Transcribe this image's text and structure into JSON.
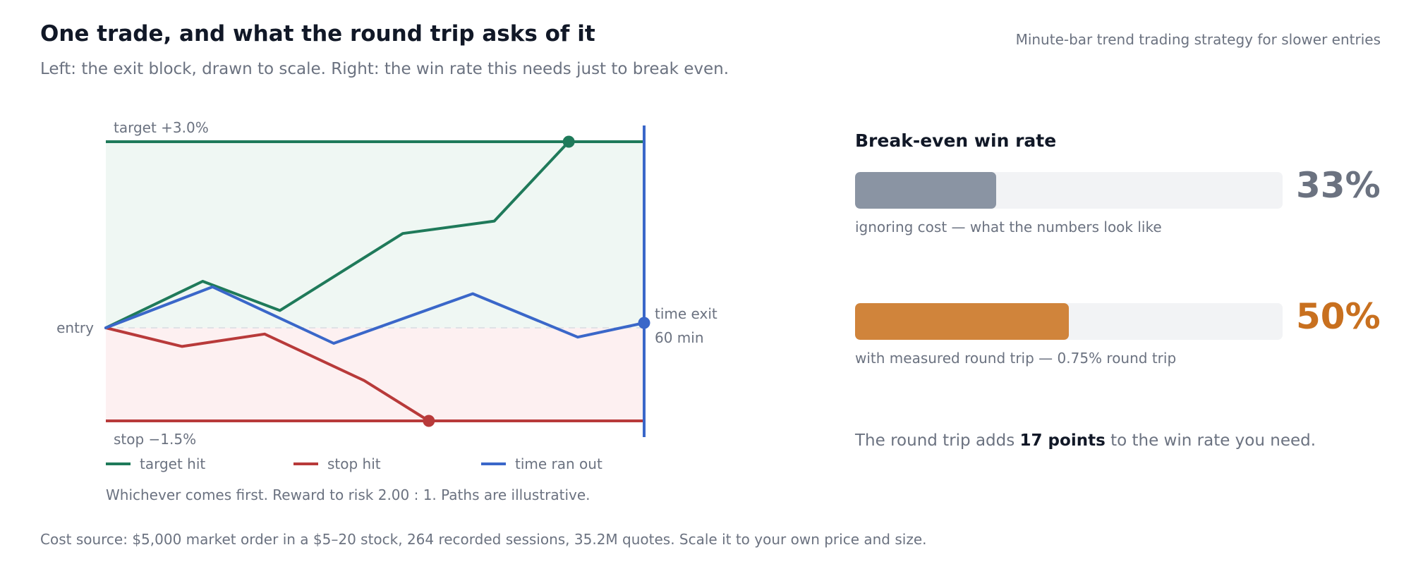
{
  "header": {
    "title": "One trade, and what the round trip asks of it",
    "subtitle": "Left: the exit block, drawn to scale. Right: the win rate this needs just to break even.",
    "caption": "Minute-bar trend trading strategy for slower entries"
  },
  "colors": {
    "target": "#1f7a5a",
    "stop": "#b83a3a",
    "time": "#3a67c9",
    "target_zone": "#eff7f3",
    "stop_zone": "#fdf0f1",
    "bar_gray": "#8a94a3",
    "bar_orange": "#d0843b",
    "value_gray": "#6b7280",
    "value_orange": "#c8701f"
  },
  "chart_data": [
    {
      "type": "line",
      "x_unit": "minutes",
      "y_unit": "% from entry",
      "xlim": [
        0,
        60
      ],
      "ylim": [
        -1.5,
        3.0
      ],
      "labels": {
        "target": "target +3.0%",
        "stop": "stop −1.5%",
        "entry": "entry",
        "time_exit": "time exit",
        "time_exit_minutes": "60 min"
      },
      "series": [
        {
          "name": "target hit",
          "color_key": "target",
          "points": [
            [
              0,
              0
            ],
            [
              10.8,
              0.75
            ],
            [
              19.4,
              0.28
            ],
            [
              33.1,
              1.52
            ],
            [
              43.3,
              1.72
            ],
            [
              51.6,
              3.0
            ]
          ],
          "end_marker": [
            51.6,
            3.0
          ]
        },
        {
          "name": "stop hit",
          "color_key": "stop",
          "points": [
            [
              0,
              0
            ],
            [
              8.5,
              -0.3
            ],
            [
              17.7,
              -0.1
            ],
            [
              28.8,
              -0.85
            ],
            [
              36.0,
              -1.5
            ]
          ],
          "end_marker": [
            36.0,
            -1.5
          ]
        },
        {
          "name": "time ran out",
          "color_key": "time",
          "points": [
            [
              0,
              0
            ],
            [
              11.9,
              0.66
            ],
            [
              25.4,
              -0.25
            ],
            [
              40.9,
              0.55
            ],
            [
              52.6,
              -0.15
            ],
            [
              60,
              0.08
            ]
          ],
          "end_marker": [
            60,
            0.08
          ]
        }
      ],
      "footnote": "Whichever comes first. Reward to risk 2.00 : 1. Paths are illustrative."
    },
    {
      "type": "bar",
      "title": "Break-even win rate",
      "xlim": [
        0,
        100
      ],
      "categories": [
        "ignoring cost — what the numbers look like",
        "with measured round trip — 0.75% round trip"
      ],
      "values": [
        33,
        50
      ],
      "value_labels": [
        "33%",
        "50%"
      ],
      "color_keys": [
        "bar_gray",
        "bar_orange"
      ],
      "value_color_keys": [
        "value_gray",
        "value_orange"
      ]
    }
  ],
  "summary": {
    "prefix": "The round trip adds ",
    "bold": "17 points",
    "suffix": " to the win rate you need."
  },
  "source": "Cost source: $5,000 market order in a $5–20 stock, 264 recorded sessions, 35.2M quotes. Scale it to your own price and size."
}
